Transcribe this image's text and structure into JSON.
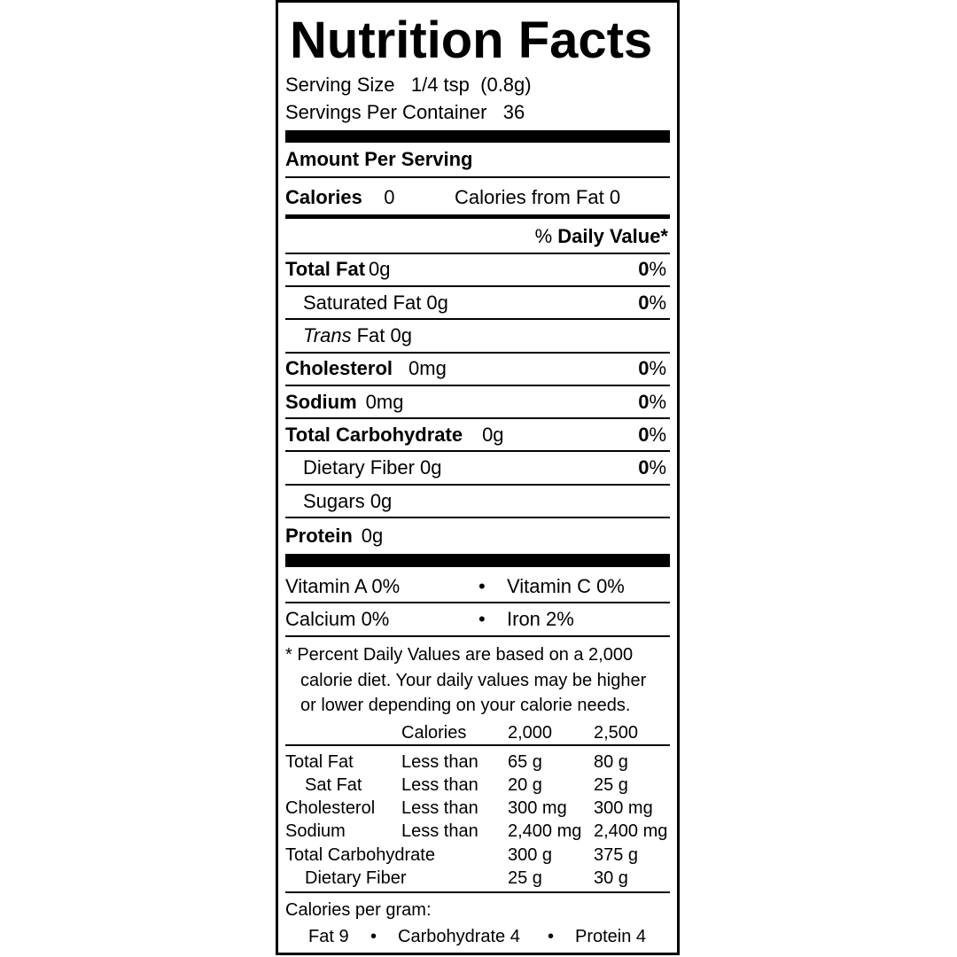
{
  "title": "Nutrition Facts",
  "serving_size_label": "Serving Size",
  "serving_size_value": "1/4 tsp  (0.8g)",
  "servings_label": "Servings Per Container",
  "servings_value": "36",
  "amount_per_serving": "Amount Per Serving",
  "calories_label": "Calories",
  "calories_value": "0",
  "calories_fat": "Calories from Fat 0",
  "dv_pct": "%",
  "dv_label": "Daily Value*",
  "nutrients": [
    {
      "name": "Total Fat",
      "amount": "0g",
      "dv": "0",
      "pct": "%"
    },
    {
      "name": "Saturated Fat 0g",
      "dv": "0",
      "pct": "%"
    },
    {
      "name": "Trans",
      "amount": "Fat 0g"
    },
    {
      "name": "Cholesterol",
      "amount": "0mg",
      "dv": "0",
      "pct": "%"
    },
    {
      "name": "Sodium",
      "amount": "0mg",
      "dv": "0",
      "pct": "%"
    },
    {
      "name": "Total Carbohydrate",
      "amount": "0g",
      "dv": "0",
      "pct": "%"
    },
    {
      "name": "Dietary Fiber 0g",
      "dv": "0",
      "pct": "%"
    },
    {
      "name": "Sugars 0g"
    },
    {
      "name": "Protein",
      "amount": "0g"
    }
  ],
  "vitamins": [
    {
      "left": "Vitamin A  0%",
      "bullet": "•",
      "right": "Vitamin C  0%"
    },
    {
      "left": "Calcium  0%",
      "bullet": "•",
      "right": "Iron  2%"
    }
  ],
  "footnote": [
    "* Percent Daily Values are based on a 2,000",
    "calorie diet. Your daily values may be higher",
    "or lower depending on your calorie needs."
  ],
  "dv_table": {
    "header": [
      "",
      "Calories",
      "2,000",
      "2,500"
    ],
    "rows": [
      [
        "Total Fat",
        "Less than",
        "65 g",
        "80 g"
      ],
      [
        "Sat Fat",
        "Less than",
        "20 g",
        "25 g"
      ],
      [
        "Cholesterol",
        "Less than",
        "300 mg",
        "300 mg"
      ],
      [
        "Sodium",
        "Less than",
        "2,400 mg",
        "2,400 mg"
      ],
      [
        "Total Carbohydrate",
        "",
        "300 g",
        "375 g"
      ],
      [
        "Dietary Fiber",
        "",
        "25 g",
        "30 g"
      ]
    ]
  },
  "calories_per_gram": "Calories per gram:",
  "cpg": [
    "Fat 9",
    "•",
    "Carbohydrate 4",
    "•",
    "Protein 4"
  ]
}
